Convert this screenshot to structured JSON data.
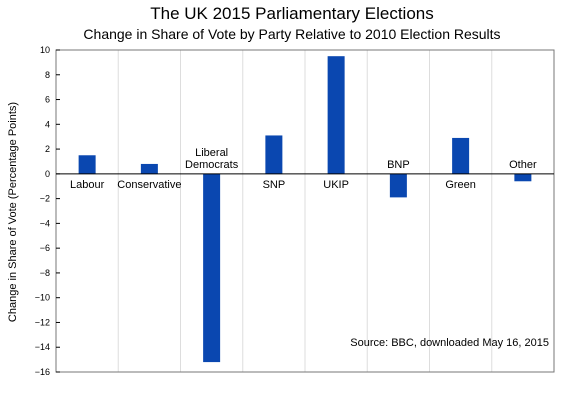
{
  "chart_data": {
    "type": "bar",
    "title": "The UK 2015 Parliamentary Elections",
    "subtitle": "Change in Share of Vote by Party Relative to 2010 Election Results",
    "ylabel": "Change in Share of Vote (Percentage Points)",
    "xlabel": "",
    "categories": [
      "Labour",
      "Conservative",
      "Liberal Democrats",
      "SNP",
      "UKIP",
      "BNP",
      "Green",
      "Other"
    ],
    "category_label_lines": [
      [
        "Labour"
      ],
      [
        "Conservative"
      ],
      [
        "Liberal",
        "Democrats"
      ],
      [
        "SNP"
      ],
      [
        "UKIP"
      ],
      [
        "BNP"
      ],
      [
        "Green"
      ],
      [
        "Other"
      ]
    ],
    "values": [
      1.5,
      0.8,
      -15.2,
      3.1,
      9.5,
      -1.9,
      2.9,
      -0.6
    ],
    "ylim": [
      -16,
      10
    ],
    "yticks": [
      10,
      8,
      6,
      4,
      2,
      0,
      -2,
      -4,
      -6,
      -8,
      -10,
      -12,
      -14,
      -16
    ],
    "grid": "vertical",
    "bar_color": "#0a47b0",
    "annotation": "Source:  BBC, downloaded May 16, 2015"
  }
}
